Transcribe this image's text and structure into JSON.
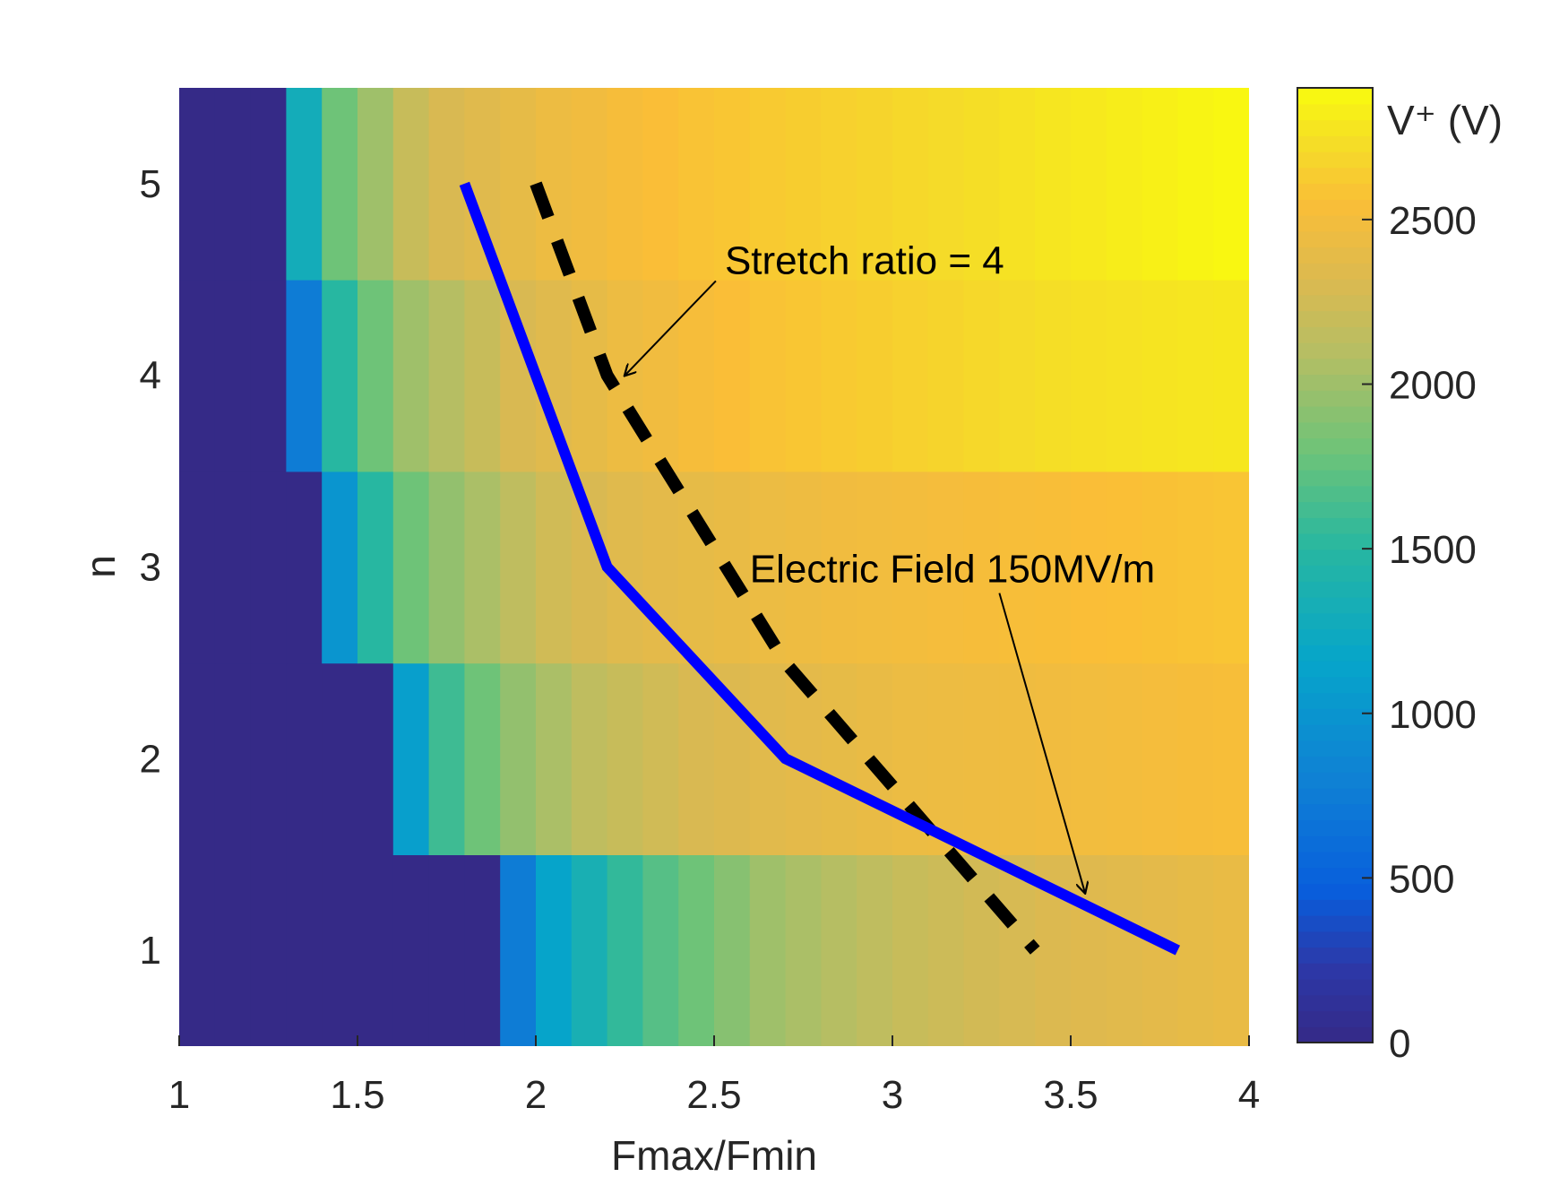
{
  "chart_data": {
    "type": "heatmap",
    "xlabel": "Fmax/Fmin",
    "ylabel": "n",
    "x_ticks": [
      "1",
      "1.5",
      "2",
      "2.5",
      "3",
      "3.5",
      "4"
    ],
    "y_ticks": [
      "1",
      "2",
      "3",
      "4",
      "5"
    ],
    "xlim": [
      1,
      4
    ],
    "ylim": [
      0.5,
      5.5
    ],
    "colorbar": {
      "label": "V⁺ (V)",
      "ticks": [
        "0",
        "500",
        "1000",
        "1500",
        "2000",
        "2500"
      ],
      "range": [
        0,
        2500
      ],
      "colormap": "parula"
    },
    "heatmap": {
      "x_start": 1.0,
      "x_step": 0.1,
      "rows": [
        {
          "n": 1,
          "values": [
            0,
            0,
            0,
            0,
            0,
            0,
            0,
            0,
            0,
            750,
            1150,
            1350,
            1550,
            1700,
            1800,
            1900,
            2000,
            2050,
            2100,
            2150,
            2200,
            2230,
            2260,
            2290,
            2320,
            2340,
            2360,
            2380,
            2400,
            2420
          ]
        },
        {
          "n": 2,
          "values": [
            0,
            0,
            0,
            0,
            0,
            0,
            1100,
            1600,
            1800,
            1950,
            2050,
            2150,
            2200,
            2250,
            2300,
            2330,
            2360,
            2380,
            2400,
            2420,
            2440,
            2450,
            2460,
            2470,
            2480,
            2490,
            2500,
            2510,
            2520,
            2530
          ]
        },
        {
          "n": 3,
          "values": [
            0,
            0,
            0,
            0,
            1000,
            1500,
            1800,
            1950,
            2050,
            2150,
            2250,
            2300,
            2350,
            2380,
            2400,
            2420,
            2440,
            2460,
            2480,
            2490,
            2500,
            2510,
            2520,
            2530,
            2540,
            2550,
            2560,
            2570,
            2580,
            2590
          ]
        },
        {
          "n": 4,
          "values": [
            0,
            0,
            0,
            750,
            1500,
            1800,
            2000,
            2100,
            2200,
            2300,
            2350,
            2400,
            2450,
            2480,
            2520,
            2550,
            2580,
            2600,
            2620,
            2640,
            2660,
            2680,
            2700,
            2720,
            2740,
            2750,
            2760,
            2770,
            2780,
            2790
          ]
        },
        {
          "n": 5,
          "values": [
            0,
            0,
            0,
            1300,
            1800,
            2000,
            2200,
            2300,
            2350,
            2400,
            2450,
            2480,
            2520,
            2550,
            2580,
            2600,
            2620,
            2640,
            2660,
            2680,
            2700,
            2720,
            2740,
            2760,
            2780,
            2800,
            2820,
            2840,
            2860,
            2880
          ]
        }
      ]
    },
    "series": [
      {
        "style": "solid",
        "color": "#0000ff",
        "x": [
          1.8,
          2.2,
          2.7,
          3.8
        ],
        "y": [
          5,
          3,
          2,
          1
        ]
      },
      {
        "style": "dashed",
        "color": "#000000",
        "x": [
          2.0,
          2.2,
          2.7,
          3.4
        ],
        "y": [
          5,
          4,
          2.5,
          1
        ]
      }
    ],
    "annotations": [
      {
        "text": "Stretch ratio = 4",
        "text_x": 2.53,
        "text_y": 4.53,
        "arrow_x": 2.25,
        "arrow_y": 4.0
      },
      {
        "text": "Electric Field  150MV/m",
        "text_x": 2.6,
        "text_y": 2.92,
        "arrow_x": 3.54,
        "arrow_y": 1.3
      }
    ]
  }
}
